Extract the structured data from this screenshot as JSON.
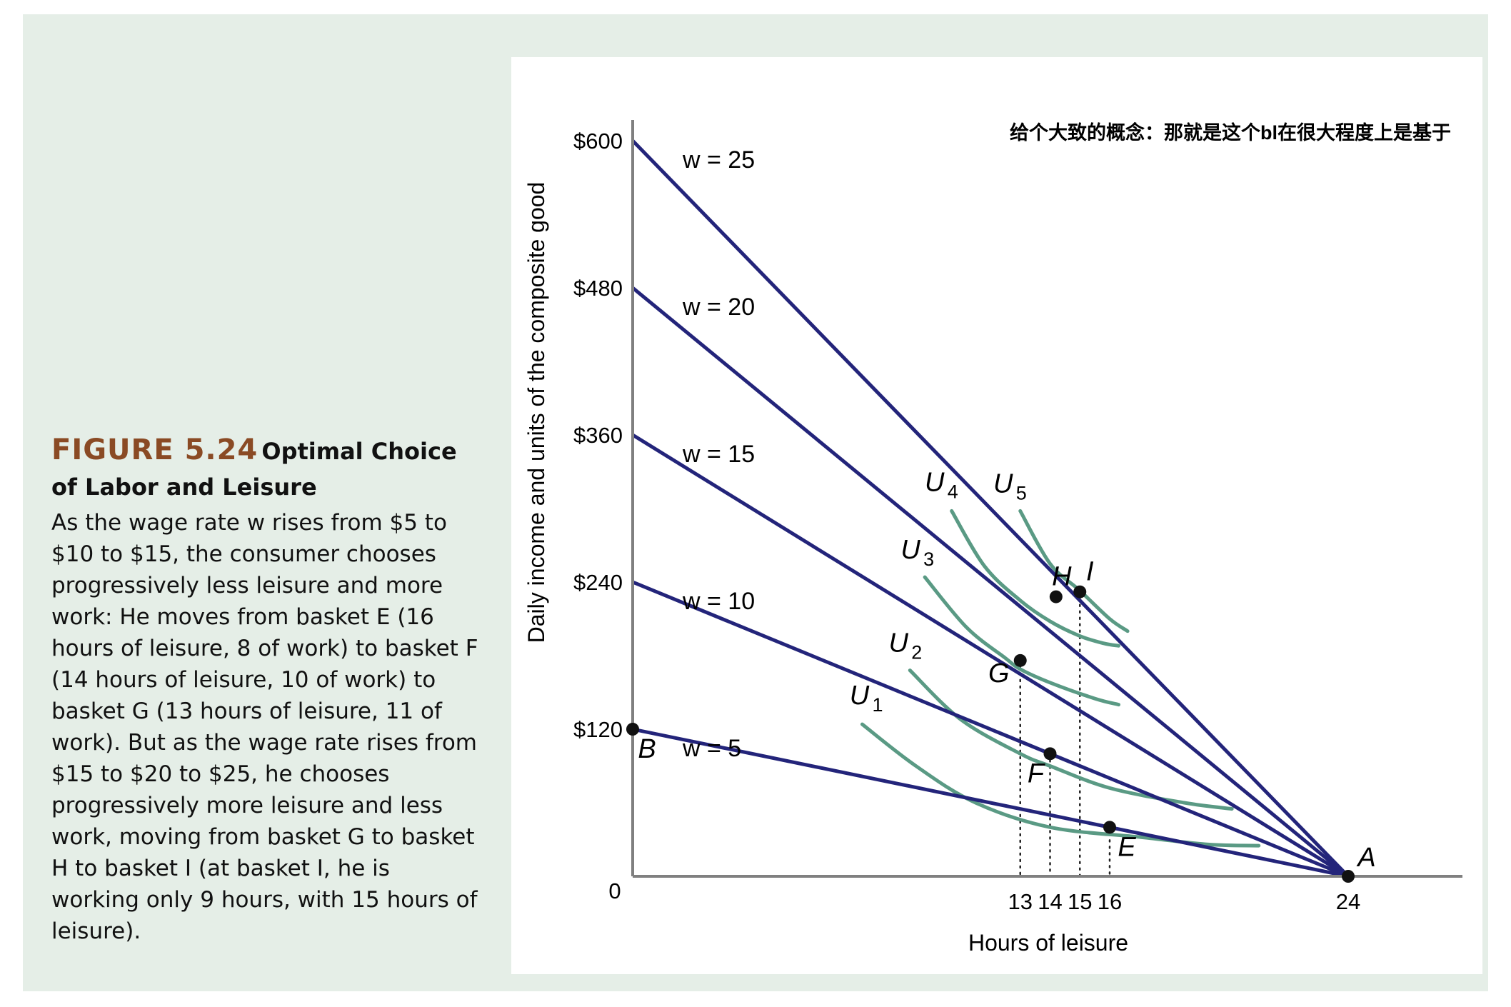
{
  "caption": {
    "figure_label": "FIGURE 5.24",
    "title": "Optimal Choice of Labor and Leisure",
    "body": "As the wage rate w rises from $5 to $10 to $15, the consumer chooses progressively less leisure and more work: He moves from basket E (16 hours of leisure, 8 of work) to basket F (14 hours of leisure, 10 of work) to basket G (13 hours of leisure, 11 of work). But as the wage rate rises from $15 to $20 to $25, he chooses progressively more leisure and less work, moving from basket G to basket H to basket I (at basket I, he is working only 9 hours, with 15 hours of leisure)."
  },
  "annotation": "给个大致的概念：那就是这个bl在很大程度上是基于",
  "colors": {
    "budget_line": "#23247a",
    "indifference_curve": "#5a9a84",
    "axis": "#808080",
    "figure_label": "#8a4a24",
    "background": "#e5eee7"
  },
  "chart_data": {
    "type": "line",
    "xlabel": "Hours of leisure",
    "ylabel": "Daily income and units of the composite good",
    "xlim": [
      0,
      24
    ],
    "ylim": [
      0,
      600
    ],
    "y_ticks": [
      {
        "value": 600,
        "label": "$600"
      },
      {
        "value": 480,
        "label": "$480"
      },
      {
        "value": 360,
        "label": "$360"
      },
      {
        "value": 240,
        "label": "$240"
      },
      {
        "value": 120,
        "label": "$120"
      }
    ],
    "x_ticks": [
      {
        "value": 13,
        "label": "13"
      },
      {
        "value": 14,
        "label": "14"
      },
      {
        "value": 15,
        "label": "15"
      },
      {
        "value": 16,
        "label": "16"
      },
      {
        "value": 24,
        "label": "24"
      }
    ],
    "origin_label": "0",
    "budget_lines": [
      {
        "name": "w = 25",
        "wage": 25,
        "intercept": 600
      },
      {
        "name": "w = 20",
        "wage": 20,
        "intercept": 480
      },
      {
        "name": "w = 15",
        "wage": 15,
        "intercept": 360
      },
      {
        "name": "w = 10",
        "wage": 10,
        "intercept": 240
      },
      {
        "name": "w = 5",
        "wage": 5,
        "intercept": 120
      }
    ],
    "indifference_curves": [
      {
        "label": "U",
        "sub": "1",
        "points": [
          [
            7.7,
            124
          ],
          [
            9.5,
            90
          ],
          [
            11.5,
            60
          ],
          [
            14,
            40
          ],
          [
            17,
            32
          ],
          [
            19.3,
            26
          ],
          [
            21,
            25
          ]
        ]
      },
      {
        "label": "U",
        "sub": "2",
        "points": [
          [
            9.3,
            168
          ],
          [
            11,
            128
          ],
          [
            13,
            100
          ],
          [
            14,
            90
          ],
          [
            16,
            72
          ],
          [
            18.5,
            60
          ],
          [
            20.1,
            55
          ]
        ]
      },
      {
        "label": "U",
        "sub": "3",
        "points": [
          [
            9.8,
            244
          ],
          [
            11.2,
            203
          ],
          [
            12.5,
            178
          ],
          [
            13,
            169
          ],
          [
            14,
            158
          ],
          [
            15.5,
            145
          ],
          [
            16.3,
            140
          ]
        ]
      },
      {
        "label": "U",
        "sub": "4",
        "points": [
          [
            10.7,
            298
          ],
          [
            11.8,
            253
          ],
          [
            13,
            225
          ],
          [
            14,
            208
          ],
          [
            15,
            196
          ],
          [
            15.8,
            190
          ],
          [
            16.3,
            188
          ]
        ]
      },
      {
        "label": "U",
        "sub": "5",
        "points": [
          [
            13,
            298
          ],
          [
            14,
            255
          ],
          [
            15,
            233
          ],
          [
            16,
            210
          ],
          [
            16.6,
            200
          ]
        ]
      }
    ],
    "points": [
      {
        "label": "A",
        "x": 24,
        "y": 0
      },
      {
        "label": "B",
        "x": 0,
        "y": 120
      },
      {
        "label": "E",
        "x": 16,
        "y": 40
      },
      {
        "label": "F",
        "x": 14,
        "y": 100
      },
      {
        "label": "G",
        "x": 13,
        "y": 176
      },
      {
        "label": "H",
        "x": 14.2,
        "y": 228
      },
      {
        "label": "I",
        "x": 15,
        "y": 232
      }
    ],
    "guide_lines_at_x": [
      13,
      14,
      15,
      16
    ]
  }
}
